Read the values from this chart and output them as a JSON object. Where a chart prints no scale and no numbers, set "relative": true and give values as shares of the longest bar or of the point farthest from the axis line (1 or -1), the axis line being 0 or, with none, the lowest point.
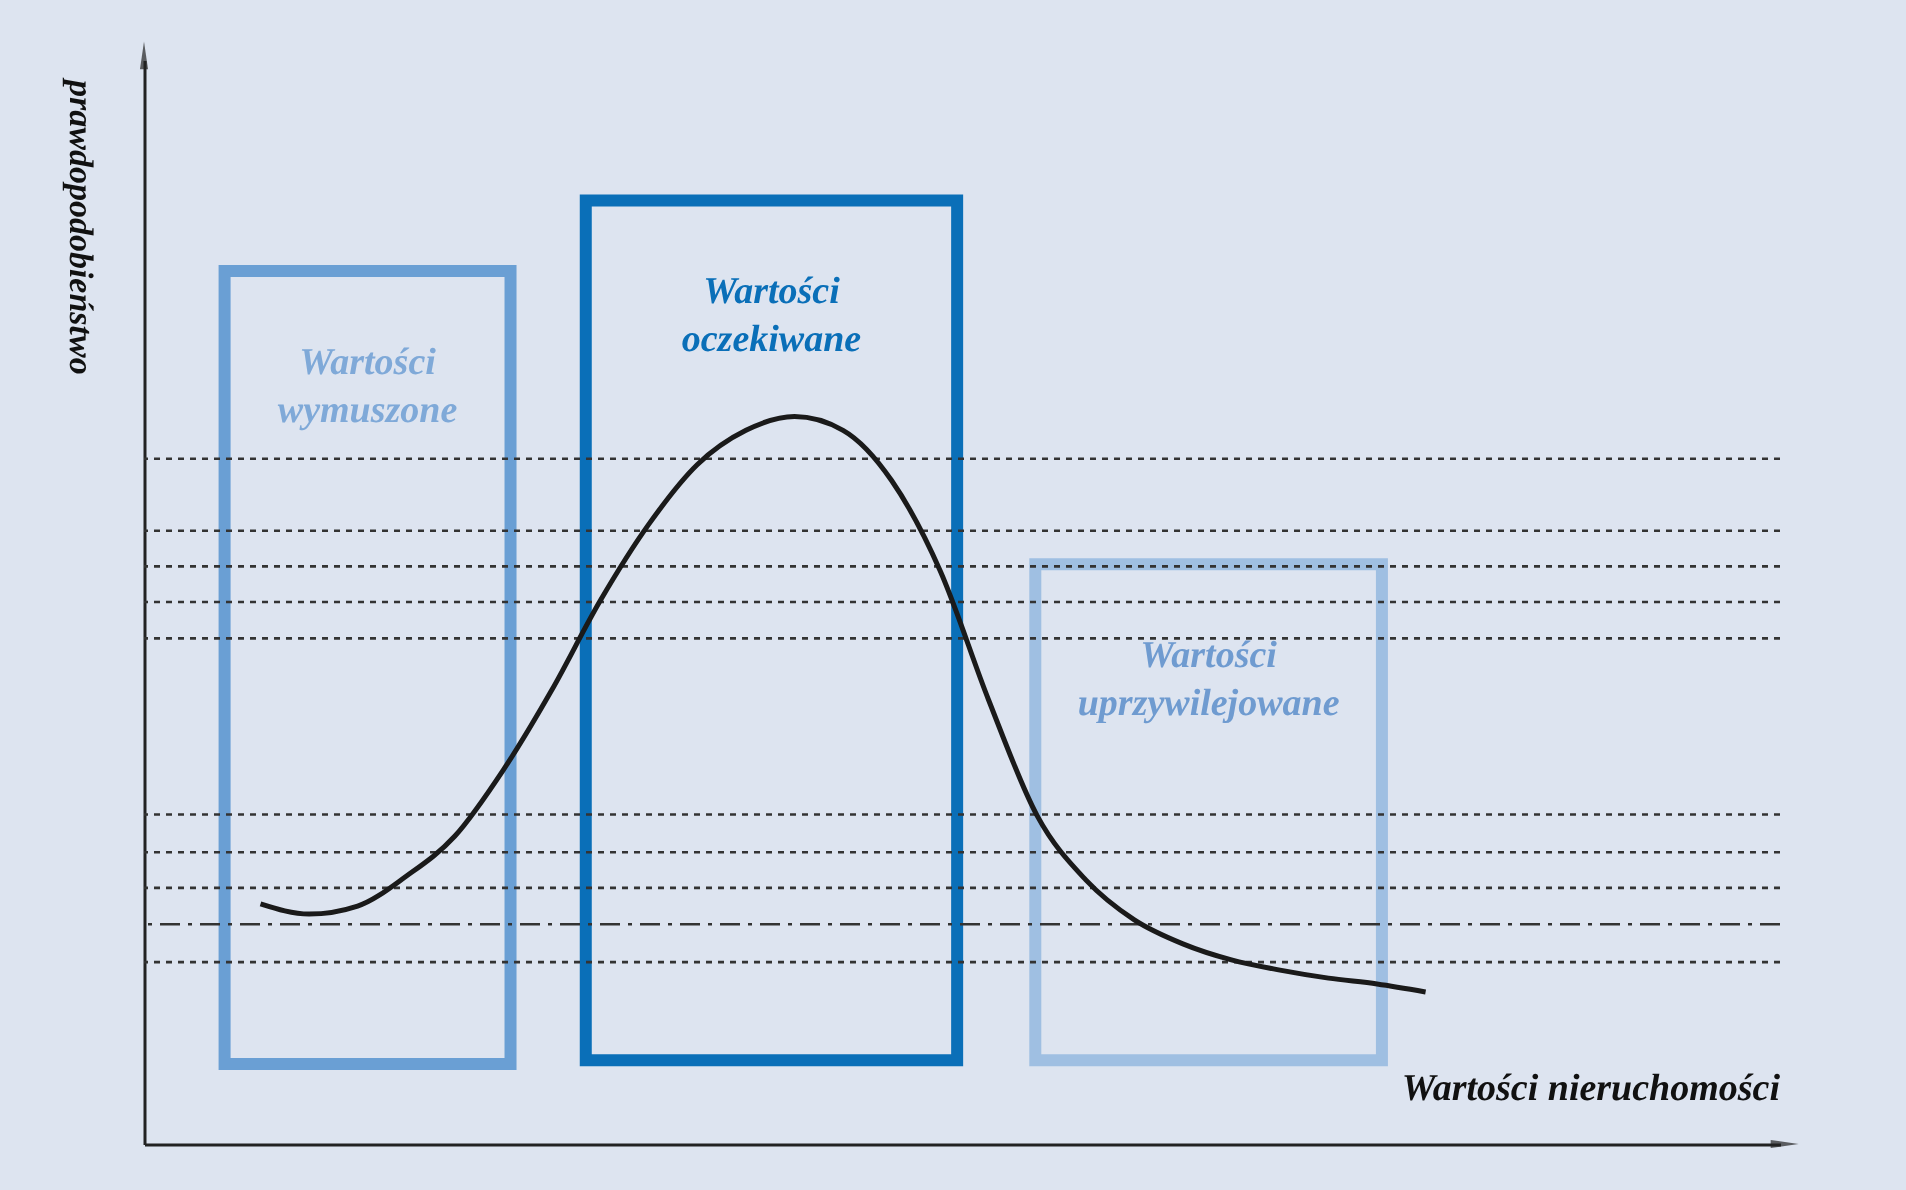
{
  "chart_data": {
    "type": "line",
    "relative": true,
    "xlabel": "Wartości nieruchomości",
    "ylabel": "prawdopodobieństwo",
    "tick_labels": false,
    "grid": false,
    "marker": "none",
    "line_style": "solid",
    "categories": [
      null,
      null,
      null,
      null,
      null,
      null,
      null,
      null,
      null,
      null,
      null,
      null,
      null,
      null,
      null,
      null,
      null,
      null,
      null,
      null,
      null,
      null,
      null,
      null,
      null
    ],
    "series": [
      {
        "color": "#1a1a1a",
        "values": [
          0.33,
          0.316,
          0.327,
          0.368,
          0.423,
          0.514,
          0.624,
          0.747,
          0.852,
          0.934,
          0.981,
          1,
          0.981,
          0.912,
          0.788,
          0.61,
          0.451,
          0.363,
          0.308,
          0.275,
          0.253,
          0.239,
          0.228,
          0.22,
          0.209
        ]
      }
    ],
    "ref_lines": [
      {
        "axis": "y",
        "value": 0.942,
        "line_style": "dotted",
        "color": "#333333"
      },
      {
        "axis": "y",
        "value": 0.843,
        "line_style": "dotted",
        "color": "#333333"
      },
      {
        "axis": "y",
        "value": 0.794,
        "line_style": "dotted",
        "color": "#333333"
      },
      {
        "axis": "y",
        "value": 0.745,
        "line_style": "dotted",
        "color": "#333333"
      },
      {
        "axis": "y",
        "value": 0.695,
        "line_style": "dotted",
        "color": "#333333"
      },
      {
        "axis": "y",
        "value": 0.453,
        "line_style": "dotted",
        "color": "#333333"
      },
      {
        "axis": "y",
        "value": 0.401,
        "line_style": "dotted",
        "color": "#333333"
      },
      {
        "axis": "y",
        "value": 0.352,
        "line_style": "dotted",
        "color": "#333333"
      },
      {
        "axis": "y",
        "value": 0.302,
        "line_style": "dashed",
        "color": "#333333"
      },
      {
        "axis": "y",
        "value": 0.25,
        "line_style": "dotted",
        "color": "#333333"
      }
    ],
    "annotations": [
      "Wartości\nwymuszone",
      "Wartości\noczekiwane",
      "Wartości\nuprzywilejowane"
    ]
  }
}
